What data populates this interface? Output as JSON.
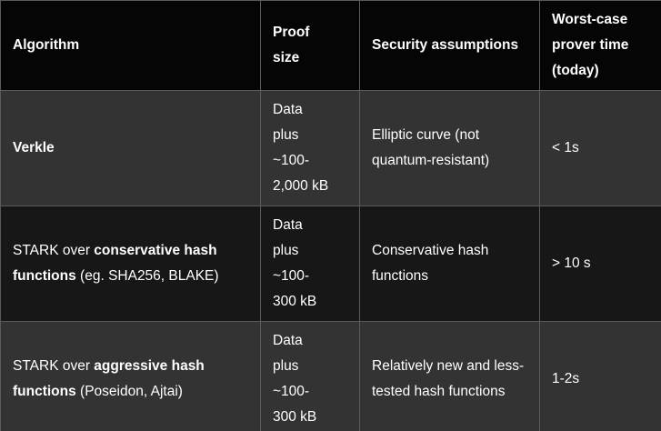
{
  "colors": {
    "page_background": "#000000",
    "header_row_background": "#050505",
    "row_gray_background": "#333333",
    "row_dark_background": "#171717",
    "cell_border": "#5a5a5a",
    "text": "#ffffff"
  },
  "table": {
    "columns": [
      {
        "label": "Algorithm"
      },
      {
        "label": "Proof\nsize"
      },
      {
        "label": "Security assumptions"
      },
      {
        "label": "Worst-case\nprover time\n(today)"
      }
    ],
    "rows": [
      {
        "algorithm": {
          "pre": "",
          "bold": "Verkle",
          "post": ""
        },
        "proof_size": "Data\nplus\n~100-\n2,000 kB",
        "security": "Elliptic curve (not quantum-resistant)",
        "prover_time": "< 1s"
      },
      {
        "algorithm": {
          "pre": "STARK over ",
          "bold": "conservative hash functions",
          "post": " (eg. SHA256, BLAKE)"
        },
        "proof_size": "Data\nplus\n~100-\n300 kB",
        "security": "Conservative hash functions",
        "prover_time": "> 10 s"
      },
      {
        "algorithm": {
          "pre": "STARK over ",
          "bold": "aggressive hash functions",
          "post": " (Poseidon, Ajtai)"
        },
        "proof_size": "Data\nplus\n~100-\n300 kB",
        "security": "Relatively new and less-tested hash functions",
        "prover_time": "1-2s"
      }
    ]
  }
}
